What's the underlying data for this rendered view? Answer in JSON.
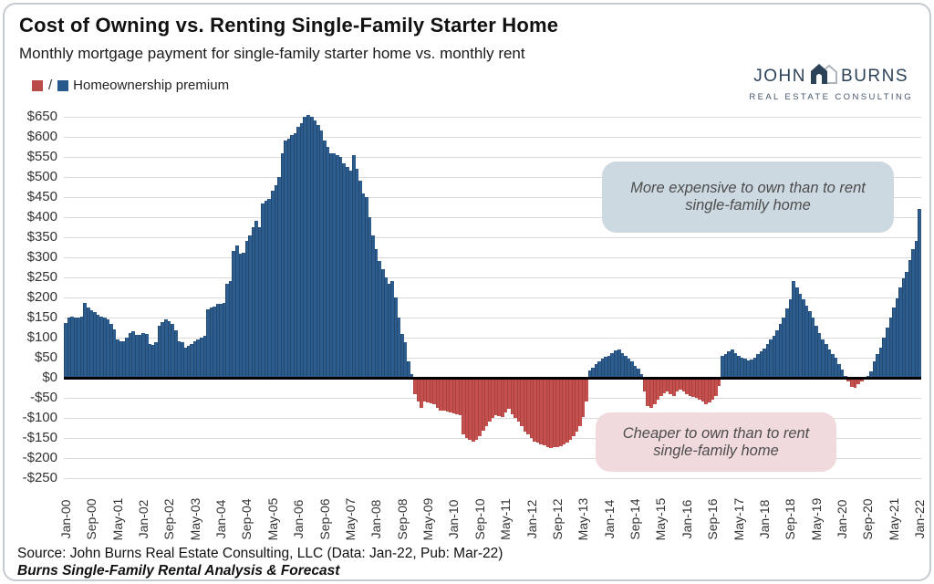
{
  "header": {
    "title": "Cost of Owning vs. Renting Single-Family Starter Home",
    "subtitle": "Monthly mortgage payment for single-family starter home vs. monthly rent",
    "legend": {
      "separator": "/",
      "label": "Homeownership premium"
    }
  },
  "logo": {
    "line1_left": "JOHN",
    "line1_right": "BURNS",
    "line2": "REAL ESTATE CONSULTING"
  },
  "annotations": {
    "positive": "More expensive to own than to rent single-family home",
    "negative": "Cheaper to own than to rent single-family home"
  },
  "footer": {
    "source": "Source: John Burns Real Estate Consulting, LLC (Data: Jan-22, Pub: Mar-22)",
    "report": "Burns Single-Family Rental Analysis & Forecast"
  },
  "colors": {
    "bar_positive": "#2d5c8f",
    "bar_positive_edge": "#24496f",
    "bar_negative": "#c5504e",
    "bar_negative_edge": "#a84341",
    "legend_red": "#b94b49",
    "legend_blue": "#265a8c",
    "gridline": "#dadada",
    "zero_line": "#000000",
    "annotation_positive_bg": "#cdd9e1",
    "annotation_negative_bg": "#f1dadd",
    "logo_navy": "#2c4257"
  },
  "chart_data": {
    "type": "bar",
    "title": "Cost of Owning vs. Renting Single-Family Starter Home",
    "subtitle": "Monthly mortgage payment for single-family starter home vs. monthly rent",
    "series_name": "Homeownership premium ($ per month, monthly mortgage payment minus monthly rent)",
    "x_start": "Jan-00",
    "x_end": "Jan-22",
    "x_frequency": "monthly",
    "x_tick_every_months": 8,
    "x_tick_labels": [
      "Jan-00",
      "Sep-00",
      "May-01",
      "Jan-02",
      "Sep-02",
      "May-03",
      "Jan-04",
      "Sep-04",
      "May-05",
      "Jan-06",
      "Sep-06",
      "May-07",
      "Jan-08",
      "Sep-08",
      "May-09",
      "Jan-10",
      "Sep-10",
      "May-11",
      "Jan-12",
      "Sep-12",
      "May-13",
      "Jan-14",
      "Sep-14",
      "May-15",
      "Jan-16",
      "Sep-16",
      "May-17",
      "Jan-18",
      "Sep-18",
      "May-19",
      "Jan-20",
      "Sep-20",
      "May-21",
      "Jan-22"
    ],
    "y_tick_labels": [
      "$650",
      "$600",
      "$550",
      "$500",
      "$450",
      "$400",
      "$350",
      "$300",
      "$250",
      "$200",
      "$150",
      "$100",
      "$50",
      "$0",
      "-$50",
      "-$100",
      "-$150",
      "-$200",
      "-$250"
    ],
    "ylim": [
      -250,
      650
    ],
    "grid": true,
    "positive_meaning": "More expensive to own than to rent single-family home",
    "negative_meaning": "Cheaper to own than to rent single-family home",
    "values": [
      136,
      150,
      152,
      150,
      149,
      153,
      187,
      176,
      168,
      163,
      157,
      153,
      149,
      145,
      134,
      120,
      96,
      92,
      90,
      100,
      111,
      115,
      107,
      107,
      111,
      110,
      85,
      81,
      88,
      130,
      138,
      145,
      142,
      134,
      119,
      92,
      88,
      75,
      80,
      85,
      90,
      95,
      100,
      105,
      170,
      175,
      178,
      183,
      185,
      187,
      235,
      240,
      315,
      330,
      308,
      312,
      340,
      355,
      375,
      390,
      375,
      435,
      440,
      445,
      465,
      480,
      500,
      560,
      590,
      595,
      605,
      610,
      625,
      635,
      650,
      655,
      650,
      640,
      630,
      615,
      590,
      575,
      560,
      560,
      555,
      550,
      535,
      525,
      515,
      555,
      520,
      490,
      460,
      450,
      400,
      355,
      320,
      290,
      270,
      250,
      235,
      240,
      200,
      150,
      110,
      88,
      40,
      10,
      -40,
      -60,
      -74,
      -59,
      -61,
      -63,
      -67,
      -75,
      -82,
      -82,
      -84,
      -86,
      -89,
      -91,
      -93,
      -142,
      -150,
      -155,
      -158,
      -154,
      -146,
      -131,
      -120,
      -108,
      -101,
      -93,
      -95,
      -97,
      -86,
      -78,
      -90,
      -100,
      -108,
      -120,
      -135,
      -142,
      -150,
      -158,
      -161,
      -165,
      -168,
      -172,
      -175,
      -173,
      -172,
      -170,
      -165,
      -161,
      -155,
      -146,
      -135,
      -120,
      -97,
      -59,
      18,
      25,
      35,
      42,
      48,
      52,
      55,
      62,
      68,
      70,
      62,
      55,
      48,
      40,
      30,
      22,
      10,
      -35,
      -70,
      -74,
      -65,
      -55,
      -45,
      -38,
      -35,
      -40,
      -45,
      -35,
      -30,
      -35,
      -40,
      -45,
      -48,
      -50,
      -55,
      -60,
      -65,
      -62,
      -55,
      -45,
      -20,
      55,
      60,
      66,
      70,
      62,
      55,
      50,
      47,
      43,
      45,
      50,
      58,
      66,
      73,
      85,
      95,
      104,
      119,
      135,
      149,
      172,
      195,
      240,
      225,
      210,
      195,
      180,
      165,
      150,
      130,
      111,
      96,
      85,
      70,
      58,
      51,
      35,
      20,
      5,
      -10,
      -22,
      -25,
      -15,
      -8,
      -3,
      5,
      15,
      40,
      60,
      75,
      100,
      125,
      150,
      175,
      198,
      225,
      248,
      263,
      293,
      320,
      342,
      420
    ]
  }
}
